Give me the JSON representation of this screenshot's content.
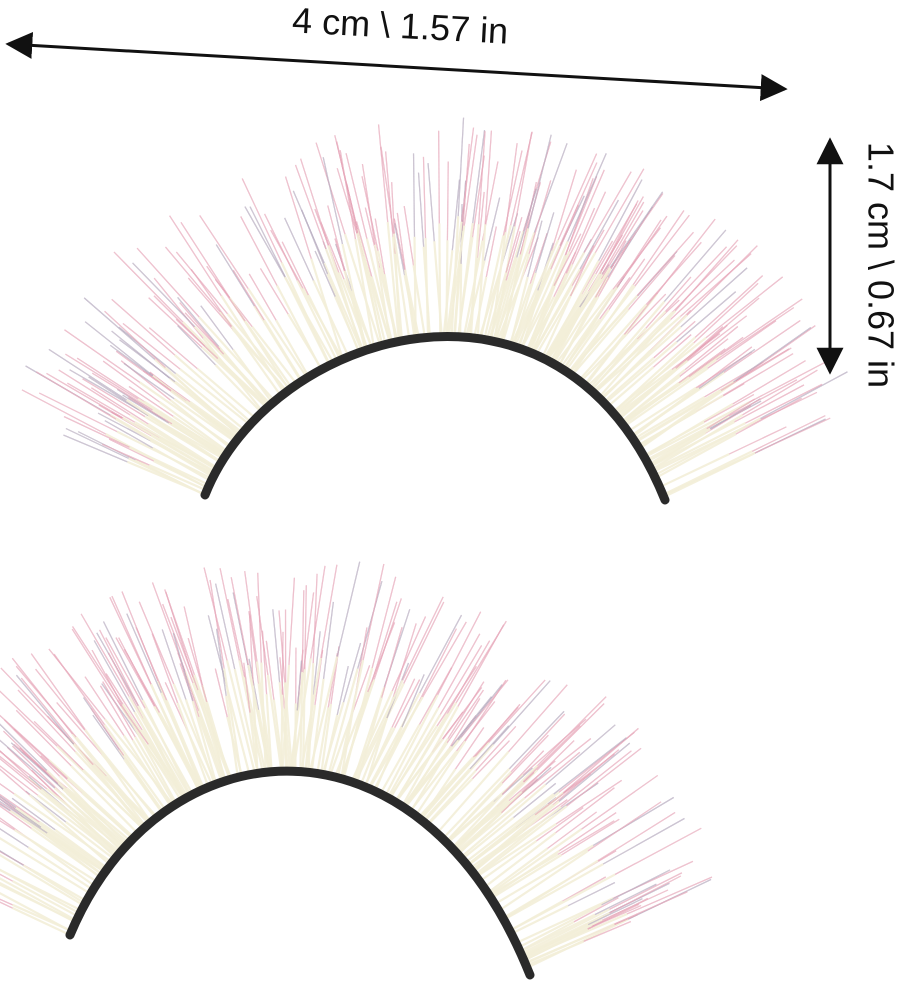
{
  "width_label": "4 cm \\ 1.57 in",
  "height_label": "1.7 cm \\ 0.67 in"
}
